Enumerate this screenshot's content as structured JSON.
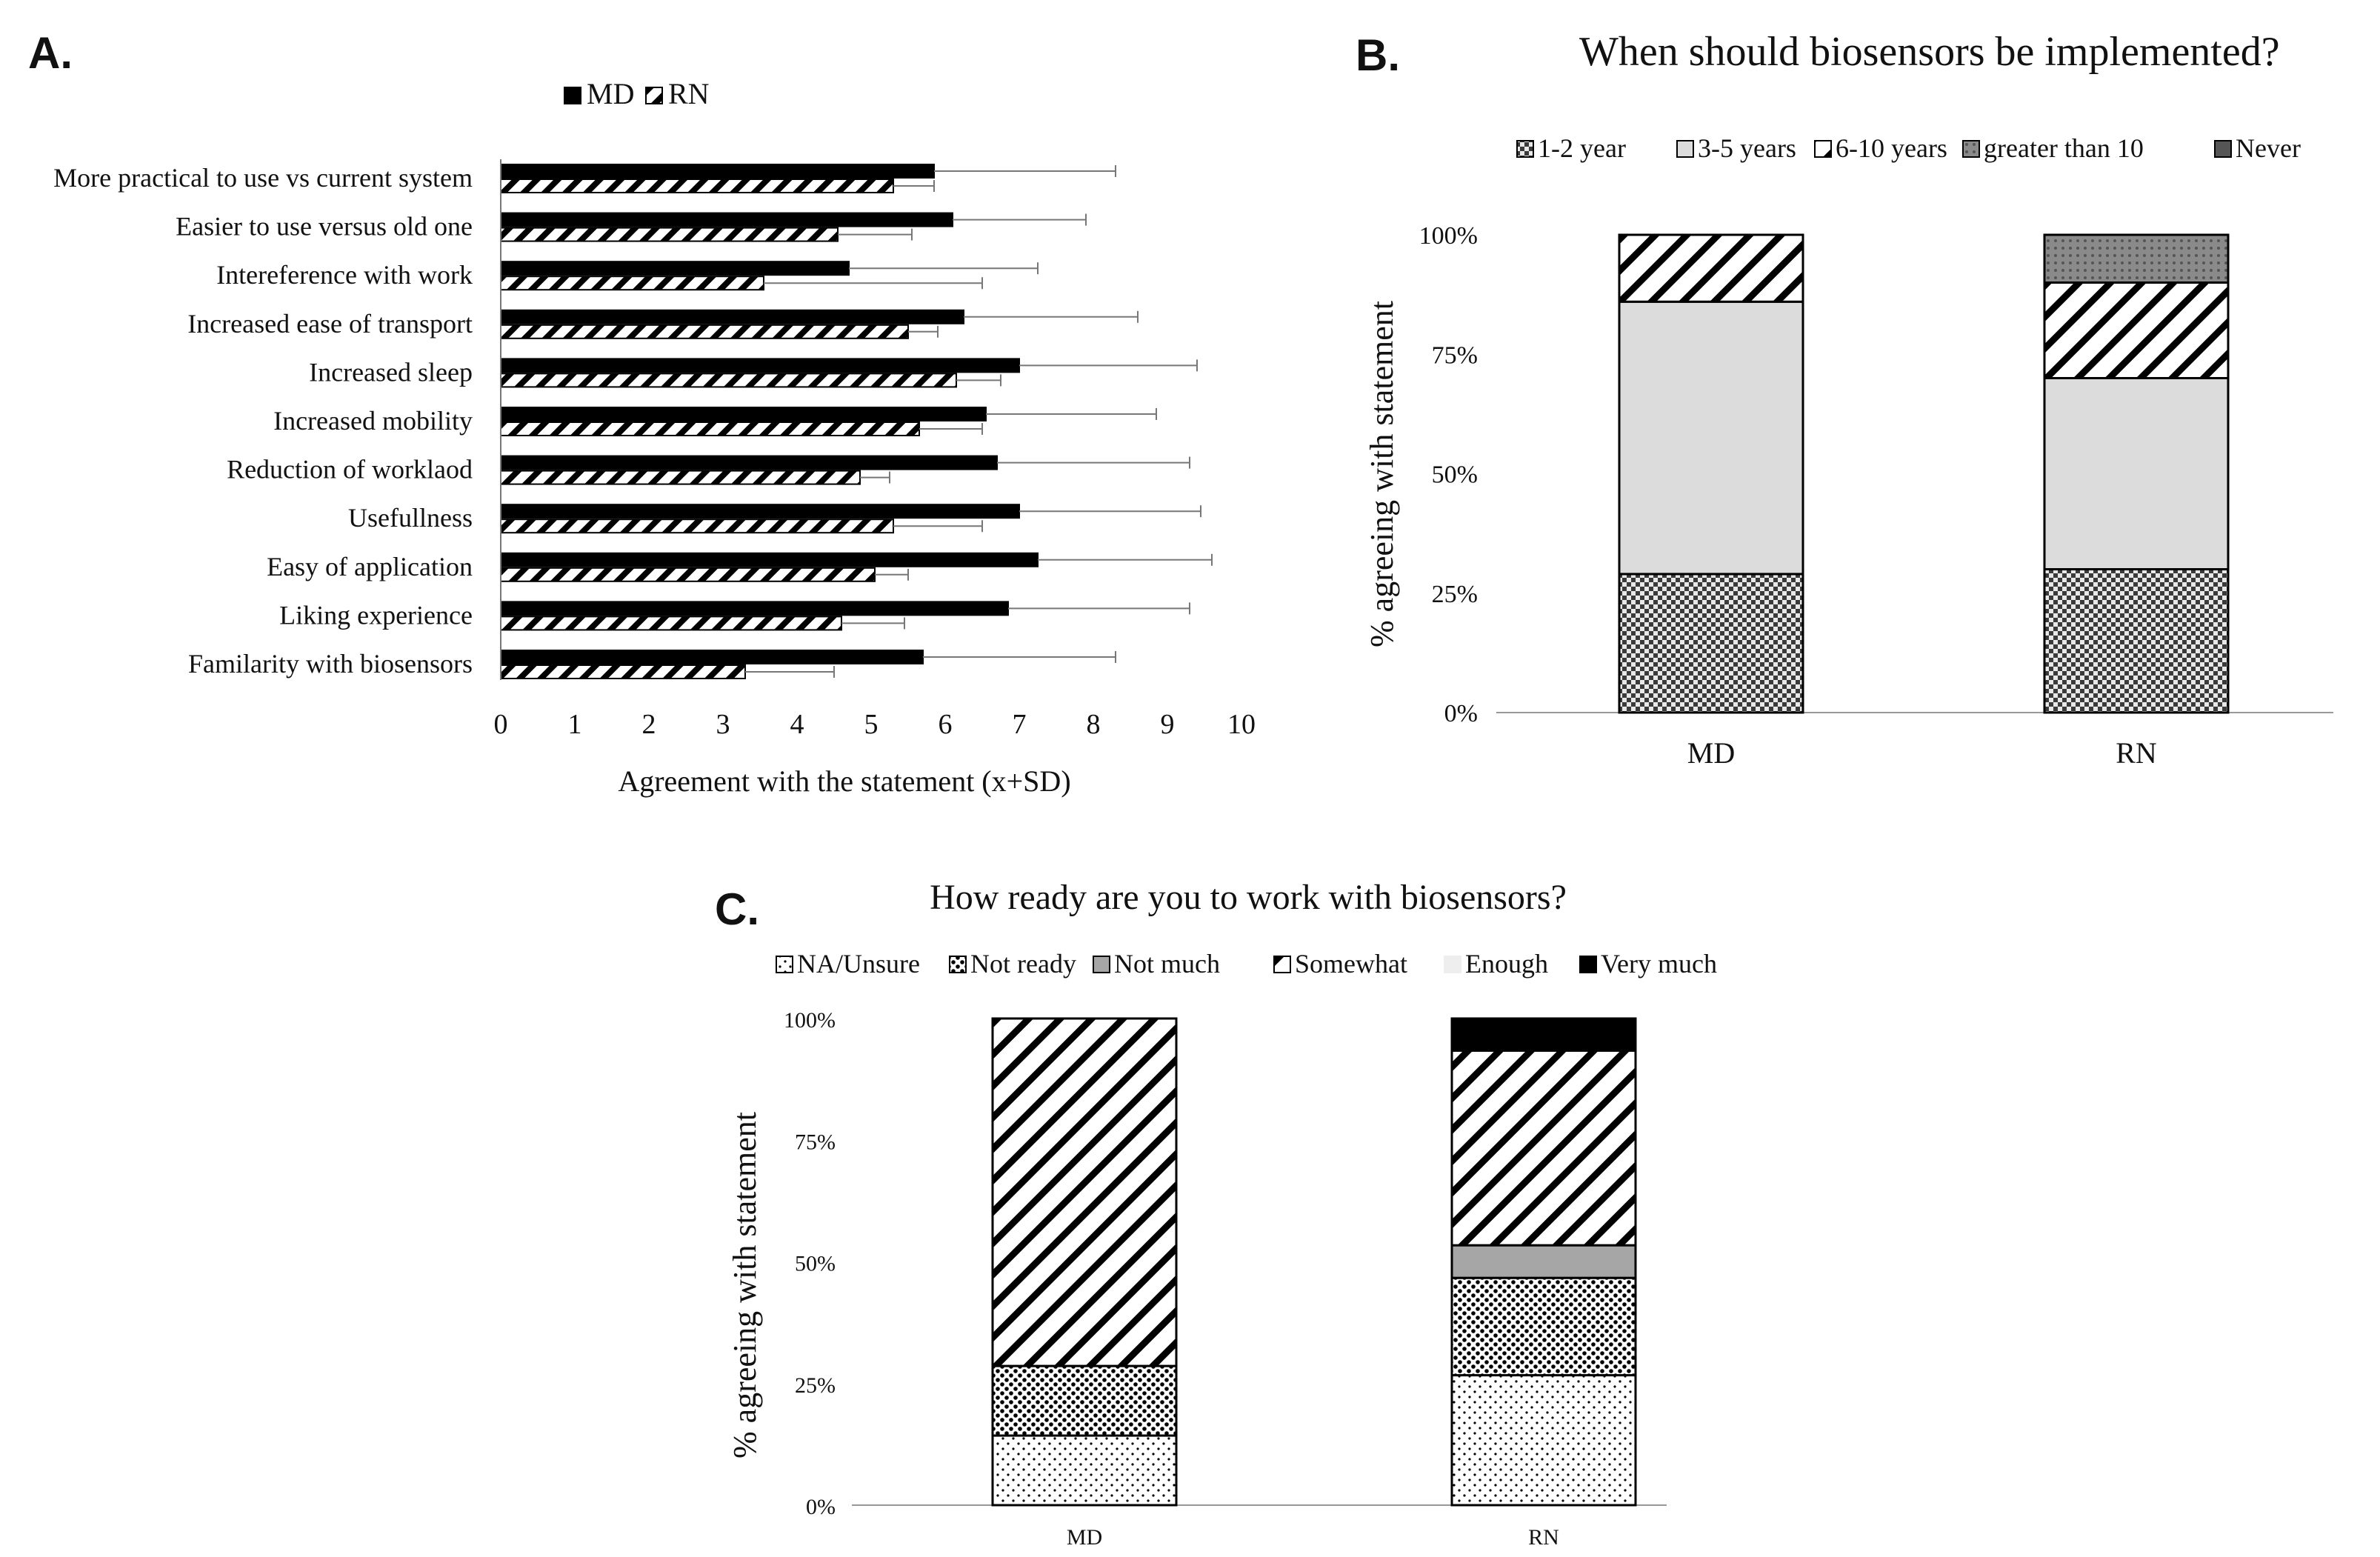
{
  "panels": {
    "a": "A.",
    "b": "B.",
    "c": "C."
  },
  "chart_data": [
    {
      "type": "bar",
      "orientation": "horizontal",
      "panel": "A.",
      "title": "",
      "xlabel": "Agreement with the statement (x+SD)",
      "ylabel": "",
      "xlim": [
        0,
        10
      ],
      "xticks": [
        "0",
        "1",
        "2",
        "3",
        "4",
        "5",
        "6",
        "7",
        "8",
        "9",
        "10"
      ],
      "legend_position": "top",
      "categories": [
        "More practical to use vs current system",
        "Easier to use versus old one",
        "Intereference with work",
        "Increased ease of transport",
        "Increased sleep",
        "Increased mobility",
        "Reduction of worklaod",
        "Usefullness",
        "Easy of application",
        "Liking experience",
        "Familarity with biosensors"
      ],
      "series": [
        {
          "name": "MD",
          "color": "#000000",
          "values": [
            5.85,
            6.1,
            4.7,
            6.25,
            7.0,
            6.55,
            6.7,
            7.0,
            7.25,
            6.85,
            5.7
          ],
          "sd": [
            2.45,
            1.8,
            2.55,
            2.35,
            2.4,
            2.3,
            2.6,
            2.45,
            2.35,
            2.45,
            2.6
          ]
        },
        {
          "name": "RN",
          "color": "#ffffff",
          "values": [
            5.3,
            4.55,
            3.55,
            5.5,
            6.15,
            5.65,
            4.85,
            5.3,
            5.05,
            4.6,
            3.3
          ],
          "sd": [
            0.55,
            1.0,
            2.95,
            0.4,
            0.6,
            0.85,
            0.4,
            1.2,
            0.45,
            0.85,
            1.2
          ]
        }
      ]
    },
    {
      "type": "bar",
      "stacked": true,
      "panel": "B.",
      "title": "When should biosensors be implemented?",
      "xlabel": "",
      "ylabel": "% agreeing with statement",
      "ylim": [
        0,
        100
      ],
      "yticks": [
        "0%",
        "25%",
        "50%",
        "75%",
        "100%"
      ],
      "legend_position": "top",
      "categories": [
        "MD",
        "RN"
      ],
      "series": [
        {
          "name": "1-2 year",
          "values": [
            29,
            30
          ]
        },
        {
          "name": "3-5 years",
          "values": [
            57,
            40
          ]
        },
        {
          "name": "6-10 years",
          "values": [
            14,
            20
          ]
        },
        {
          "name": "greater than 10",
          "values": [
            0,
            10
          ]
        },
        {
          "name": "Never",
          "values": [
            0,
            0
          ]
        }
      ]
    },
    {
      "type": "bar",
      "stacked": true,
      "panel": "C.",
      "title": "How ready are you to work with biosensors?",
      "xlabel": "",
      "ylabel": "% agreeing with statement",
      "ylim": [
        0,
        100
      ],
      "yticks": [
        "0%",
        "25%",
        "50%",
        "75%",
        "100%"
      ],
      "legend_position": "top",
      "categories": [
        "MD",
        "RN"
      ],
      "series": [
        {
          "name": "NA/Unsure",
          "values": [
            14.3,
            26.7
          ]
        },
        {
          "name": "Not ready",
          "values": [
            14.3,
            20.0
          ]
        },
        {
          "name": "Not much",
          "values": [
            0,
            6.7
          ]
        },
        {
          "name": "Somewhat",
          "values": [
            71.4,
            40.0
          ]
        },
        {
          "name": "Enough",
          "values": [
            0,
            0
          ]
        },
        {
          "name": "Very much",
          "values": [
            0,
            6.6
          ]
        }
      ]
    }
  ]
}
